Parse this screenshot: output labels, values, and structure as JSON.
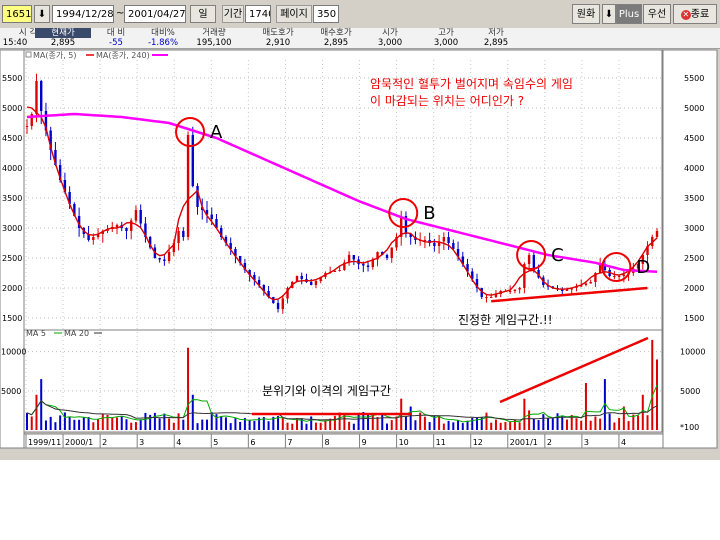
{
  "toolbar": {
    "code": "1651",
    "start_date": "1994/12/28",
    "end_date": "2001/04/27",
    "period_unit": "일",
    "period_label": "기간",
    "period_value": "1740",
    "page_label": "페이지",
    "page_value": "350",
    "btn_won": "원화",
    "btn_plus": "Plus",
    "btn_priority": "우선",
    "btn_close": "종료"
  },
  "quote": {
    "time": "15:40",
    "headers": [
      "시 각",
      "현재가",
      "대 비",
      "대비%",
      "거래량",
      "매도호가",
      "매수호가",
      "시가",
      "고가",
      "저가"
    ],
    "values": [
      "2,895",
      "-55",
      "-1.86%",
      "195,100",
      "2,910",
      "2,895",
      "3,000",
      "3,000",
      "2,895"
    ]
  },
  "colors": {
    "price_up": "#dd0000",
    "price_down": "#0000cc",
    "ma5": "#dd0000",
    "ma240": "#ff00ff",
    "annot": "#ee0000",
    "vol_ma5": "#00aa00",
    "vol_ma20": "#333333"
  },
  "chart_data": [
    {
      "type": "candlestick",
      "panel": "price",
      "legend": [
        "MA(종가, 5)",
        "MA(종가, 240)"
      ],
      "ylim": [
        1400,
        5800
      ],
      "yticks": [
        1500,
        2000,
        2500,
        3000,
        3500,
        4000,
        4500,
        5000,
        5500
      ],
      "x_tick_labels": [
        "1999/11",
        "2000/1",
        "2",
        "3",
        "4",
        "5",
        "6",
        "7",
        "8",
        "9",
        "10",
        "11",
        "12",
        "2001/1",
        "2",
        "3",
        "4"
      ],
      "price_path": [
        [
          0,
          4700
        ],
        [
          1,
          4900
        ],
        [
          2,
          5450
        ],
        [
          3,
          4950
        ],
        [
          5,
          4300
        ],
        [
          7,
          3800
        ],
        [
          9,
          3400
        ],
        [
          11,
          3000
        ],
        [
          13,
          2800
        ],
        [
          16,
          2950
        ],
        [
          19,
          3050
        ],
        [
          21,
          2950
        ],
        [
          23,
          3300
        ],
        [
          25,
          2850
        ],
        [
          27,
          2500
        ],
        [
          29,
          2450
        ],
        [
          31,
          2750
        ],
        [
          32,
          2950
        ],
        [
          33,
          2850
        ],
        [
          34,
          4550
        ],
        [
          35,
          3700
        ],
        [
          36,
          3350
        ],
        [
          37,
          3300
        ],
        [
          39,
          3150
        ],
        [
          41,
          2850
        ],
        [
          43,
          2650
        ],
        [
          46,
          2300
        ],
        [
          49,
          2050
        ],
        [
          51,
          1850
        ],
        [
          53,
          1650
        ],
        [
          55,
          2000
        ],
        [
          57,
          2200
        ],
        [
          60,
          2050
        ],
        [
          63,
          2250
        ],
        [
          66,
          2300
        ],
        [
          68,
          2550
        ],
        [
          70,
          2400
        ],
        [
          72,
          2350
        ],
        [
          74,
          2600
        ],
        [
          76,
          2500
        ],
        [
          78,
          2850
        ],
        [
          79,
          3200
        ],
        [
          80,
          2900
        ],
        [
          82,
          2800
        ],
        [
          84,
          2800
        ],
        [
          86,
          2700
        ],
        [
          88,
          2850
        ],
        [
          90,
          2650
        ],
        [
          92,
          2400
        ],
        [
          94,
          2150
        ],
        [
          96,
          1850
        ],
        [
          98,
          1850
        ],
        [
          100,
          1950
        ],
        [
          102,
          1950
        ],
        [
          104,
          2000
        ],
        [
          105,
          2400
        ],
        [
          106,
          2550
        ],
        [
          107,
          2300
        ],
        [
          109,
          2050
        ],
        [
          111,
          2000
        ],
        [
          113,
          1950
        ],
        [
          115,
          2000
        ],
        [
          117,
          2050
        ],
        [
          119,
          2100
        ],
        [
          121,
          2400
        ],
        [
          123,
          2200
        ],
        [
          125,
          2200
        ],
        [
          127,
          2250
        ],
        [
          129,
          2400
        ],
        [
          131,
          2700
        ],
        [
          132,
          2850
        ],
        [
          133,
          2950
        ]
      ],
      "ma240_path": [
        [
          0,
          4850
        ],
        [
          10,
          4900
        ],
        [
          20,
          4850
        ],
        [
          30,
          4750
        ],
        [
          40,
          4500
        ],
        [
          50,
          4150
        ],
        [
          60,
          3800
        ],
        [
          70,
          3450
        ],
        [
          80,
          3150
        ],
        [
          90,
          2950
        ],
        [
          100,
          2750
        ],
        [
          110,
          2550
        ],
        [
          120,
          2420
        ],
        [
          126,
          2300
        ],
        [
          133,
          2270
        ]
      ],
      "annotations": [
        {
          "label": "A",
          "x": 34,
          "y": 4600
        },
        {
          "label": "B",
          "x": 79,
          "y": 3250
        },
        {
          "label": "C",
          "x": 106,
          "y": 2550
        },
        {
          "label": "D",
          "x": 124,
          "y": 2350
        }
      ],
      "question_line1": "암묵적인 혈투가 벌어지며 속임수의 게임",
      "question_line2": "이 마감되는 위치는 어디인가 ?",
      "trendline_label": "진정한 게임구간.!!"
    },
    {
      "type": "bar",
      "panel": "volume",
      "legend": [
        "MA 5",
        "MA 20"
      ],
      "ylim": [
        0,
        12000
      ],
      "yticks": [
        5000,
        10000
      ],
      "unit": "*100",
      "range_label": "분위기와 이격의 게임구간",
      "spikes": [
        [
          2,
          4500
        ],
        [
          3,
          6500
        ],
        [
          34,
          10500
        ],
        [
          35,
          4500
        ],
        [
          79,
          4000
        ],
        [
          81,
          3000
        ],
        [
          105,
          4000
        ],
        [
          106,
          2500
        ],
        [
          118,
          6000
        ],
        [
          122,
          6500
        ],
        [
          126,
          3000
        ],
        [
          130,
          4500
        ],
        [
          132,
          11500
        ],
        [
          133,
          9000
        ]
      ]
    }
  ]
}
